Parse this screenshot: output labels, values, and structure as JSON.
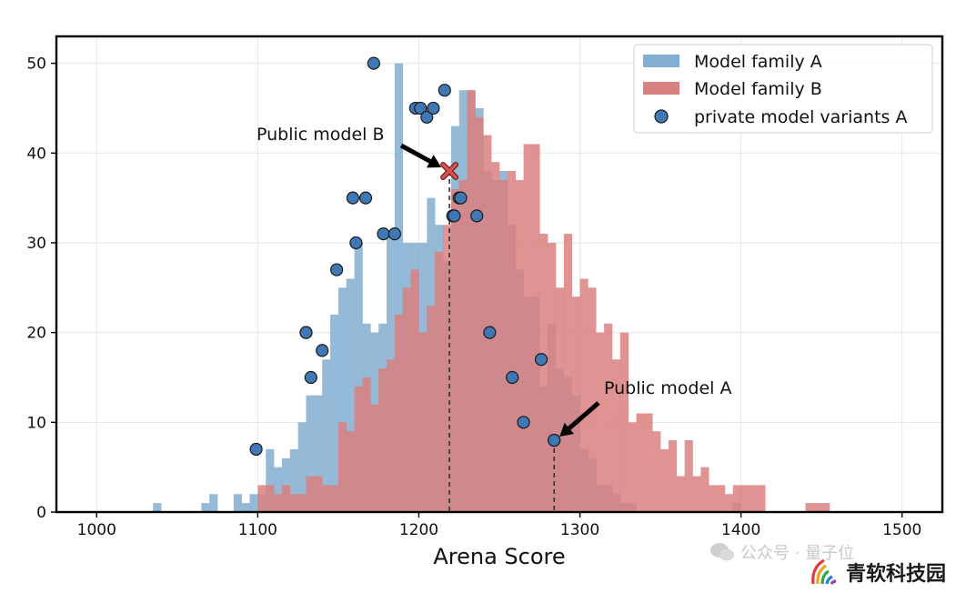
{
  "chart_data": {
    "type": "histogram",
    "xlabel": "Arena Score",
    "ylabel": "",
    "xlim": [
      975,
      1525
    ],
    "ylim": [
      0,
      53
    ],
    "xticks": [
      1000,
      1100,
      1200,
      1300,
      1400,
      1500
    ],
    "yticks": [
      0,
      10,
      20,
      30,
      40,
      50
    ],
    "grid": true,
    "legend_position": "top-right",
    "bin_width": 5,
    "series": [
      {
        "name": "Model family A",
        "color": "#82aed1",
        "opacity": 0.85,
        "bin_start": 1035,
        "counts": [
          1,
          0,
          0,
          0,
          0,
          0,
          1,
          2,
          0,
          0,
          2,
          1,
          2,
          2,
          7,
          5,
          6,
          7,
          10,
          13,
          13,
          17,
          22,
          25,
          26,
          30,
          21,
          20,
          21,
          31,
          50,
          30,
          30,
          30,
          35,
          32,
          28,
          43,
          47,
          47,
          45,
          38,
          37,
          38,
          32,
          27,
          24,
          24,
          14,
          21,
          16,
          15,
          13,
          7,
          6,
          3,
          3,
          2,
          1,
          1,
          0,
          0,
          0,
          0,
          0,
          0,
          0,
          0,
          0,
          0,
          0,
          0,
          1
        ]
      },
      {
        "name": "Model family B",
        "color": "#d98080",
        "opacity": 0.85,
        "bin_start": 1100,
        "counts": [
          3,
          3,
          2,
          3,
          2,
          2,
          4,
          4,
          3,
          3,
          10,
          9,
          14,
          15,
          12,
          16,
          17,
          22,
          25,
          27,
          20,
          23,
          29,
          32,
          36,
          37,
          47,
          44,
          42,
          39,
          37,
          38,
          37,
          41,
          41,
          31,
          30,
          25,
          31,
          24,
          26,
          25,
          20,
          21,
          17,
          20,
          10,
          11,
          11,
          9,
          7,
          8,
          4,
          8,
          4,
          5,
          3,
          3,
          2,
          3,
          3,
          3,
          3,
          0,
          0,
          0,
          0,
          0,
          1,
          1,
          1
        ]
      }
    ],
    "markers": {
      "name": "private model variants A",
      "color": "#3f78b5",
      "points": [
        {
          "x": 1099,
          "y": 7
        },
        {
          "x": 1130,
          "y": 20
        },
        {
          "x": 1130,
          "y": 20
        },
        {
          "x": 1133,
          "y": 15
        },
        {
          "x": 1140,
          "y": 18
        },
        {
          "x": 1149,
          "y": 27
        },
        {
          "x": 1159,
          "y": 35
        },
        {
          "x": 1161,
          "y": 30
        },
        {
          "x": 1167,
          "y": 35
        },
        {
          "x": 1172,
          "y": 50
        },
        {
          "x": 1178,
          "y": 31
        },
        {
          "x": 1185,
          "y": 31
        },
        {
          "x": 1198,
          "y": 45
        },
        {
          "x": 1201,
          "y": 45
        },
        {
          "x": 1205,
          "y": 44
        },
        {
          "x": 1209,
          "y": 45
        },
        {
          "x": 1216,
          "y": 47
        },
        {
          "x": 1221,
          "y": 33
        },
        {
          "x": 1222,
          "y": 33
        },
        {
          "x": 1225,
          "y": 35
        },
        {
          "x": 1226,
          "y": 35
        },
        {
          "x": 1236,
          "y": 33
        },
        {
          "x": 1244,
          "y": 20
        },
        {
          "x": 1258,
          "y": 15
        },
        {
          "x": 1265,
          "y": 10
        },
        {
          "x": 1276,
          "y": 17
        },
        {
          "x": 1284,
          "y": 8
        }
      ]
    },
    "public_model_b": {
      "label": "Public model B",
      "x": 1219,
      "y": 38,
      "color": "#d9534f"
    },
    "public_model_a": {
      "label": "Public model A",
      "x": 1284,
      "y": 8
    }
  },
  "watermark": {
    "faint_text": "公众号 · 量子位",
    "brand_text": "青软科技园"
  }
}
